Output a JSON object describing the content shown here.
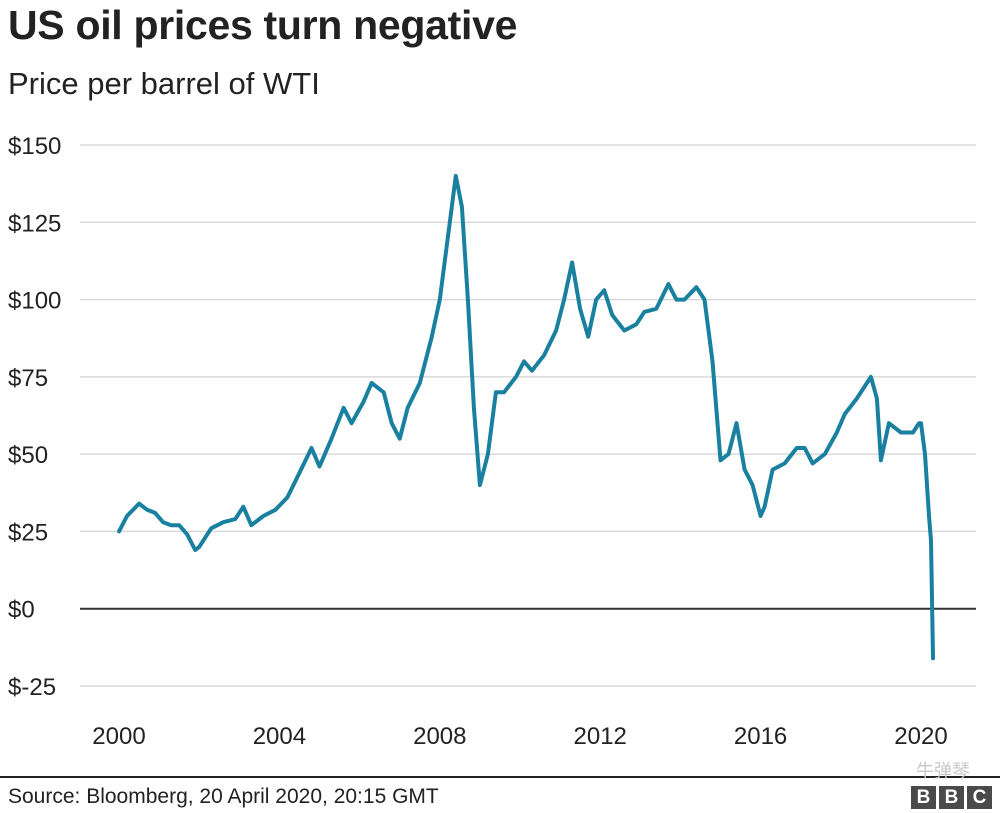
{
  "chart_data": {
    "type": "line",
    "title": "US oil prices turn negative",
    "subtitle": "Price per barrel of WTI",
    "xlabel": "",
    "ylabel": "",
    "xlim": [
      2000,
      2020.5
    ],
    "ylim": [
      -25,
      150
    ],
    "yticks": [
      150,
      125,
      100,
      75,
      50,
      25,
      0,
      -25
    ],
    "ytick_labels": [
      "$150",
      "$125",
      "$100",
      "$75",
      "$50",
      "$25",
      "$0",
      "$-25"
    ],
    "xticks": [
      2000,
      2004,
      2008,
      2012,
      2016,
      2020
    ],
    "xtick_labels": [
      "2000",
      "2004",
      "2008",
      "2012",
      "2016",
      "2020"
    ],
    "grid": true,
    "legend": "none",
    "series_color": "#1a80a0",
    "series": [
      {
        "name": "",
        "x": [
          2000.0,
          2000.2,
          2000.5,
          2000.7,
          2000.9,
          2001.1,
          2001.3,
          2001.5,
          2001.7,
          2001.9,
          2002.0,
          2002.3,
          2002.6,
          2002.9,
          2003.1,
          2003.3,
          2003.6,
          2003.9,
          2004.2,
          2004.5,
          2004.8,
          2005.0,
          2005.3,
          2005.6,
          2005.8,
          2006.1,
          2006.3,
          2006.6,
          2006.8,
          2007.0,
          2007.2,
          2007.5,
          2007.8,
          2008.0,
          2008.2,
          2008.4,
          2008.55,
          2008.7,
          2008.85,
          2009.0,
          2009.2,
          2009.4,
          2009.6,
          2009.9,
          2010.1,
          2010.3,
          2010.6,
          2010.9,
          2011.1,
          2011.3,
          2011.5,
          2011.7,
          2011.9,
          2012.1,
          2012.3,
          2012.6,
          2012.9,
          2013.1,
          2013.4,
          2013.7,
          2013.9,
          2014.1,
          2014.4,
          2014.6,
          2014.8,
          2015.0,
          2015.2,
          2015.4,
          2015.6,
          2015.8,
          2016.0,
          2016.1,
          2016.3,
          2016.6,
          2016.9,
          2017.1,
          2017.3,
          2017.6,
          2017.9,
          2018.1,
          2018.4,
          2018.75,
          2018.9,
          2019.0,
          2019.2,
          2019.5,
          2019.8,
          2019.95,
          2020.0,
          2020.1,
          2020.2,
          2020.25,
          2020.3
        ],
        "values": [
          25,
          30,
          34,
          32,
          31,
          28,
          27,
          27,
          24,
          19,
          20,
          26,
          28,
          29,
          33,
          27,
          30,
          32,
          36,
          44,
          52,
          46,
          55,
          65,
          60,
          67,
          73,
          70,
          60,
          55,
          65,
          73,
          88,
          100,
          120,
          140,
          130,
          100,
          65,
          40,
          50,
          70,
          70,
          75,
          80,
          77,
          82,
          90,
          100,
          112,
          97,
          88,
          100,
          103,
          95,
          90,
          92,
          96,
          97,
          105,
          100,
          100,
          104,
          100,
          80,
          48,
          50,
          60,
          45,
          40,
          30,
          33,
          45,
          47,
          52,
          52,
          47,
          50,
          57,
          63,
          68,
          75,
          68,
          48,
          60,
          57,
          57,
          60,
          60,
          50,
          30,
          22,
          -16
        ]
      }
    ]
  },
  "source": "Source: Bloomberg, 20 April 2020, 20:15 GMT",
  "watermark": "牛弹琴",
  "logo_text": [
    "B",
    "B",
    "C"
  ]
}
